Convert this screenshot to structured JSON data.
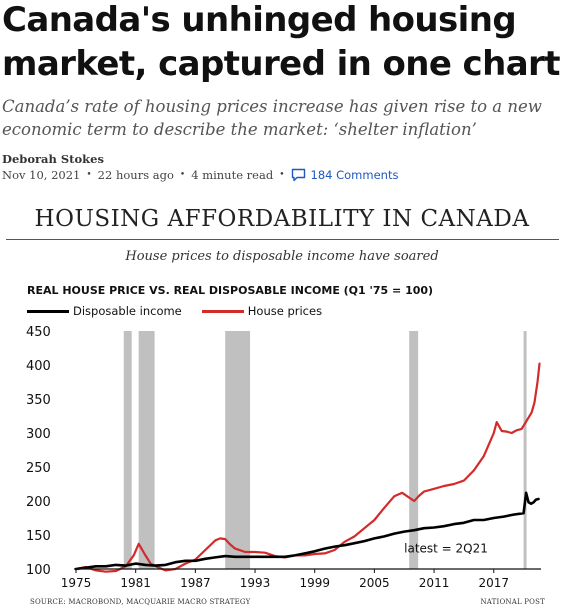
{
  "article": {
    "headline": "Canada's unhinged housing market, captured in one chart",
    "dek": "Canada’s rate of housing prices increase has given rise to a new economic term to describe the market: ‘shelter inflation’",
    "author": "Deborah Stokes",
    "date": "Nov 10, 2021",
    "ago": "22 hours ago",
    "read_time": "4 minute read",
    "comments": "184 Comments",
    "comment_icon": "speech-bubble-icon"
  },
  "graphic": {
    "title": "HOUSING AFFORDABILITY IN CANADA",
    "subtitle": "House prices to disposable income have soared",
    "source": "SOURCE: MACROBOND, MACQUARIE MACRO STRATEGY",
    "credit": "NATIONAL POST"
  },
  "chart_data": {
    "type": "line",
    "title": "REAL HOUSE PRICE VS. REAL DISPOSABLE INCOME (Q1 '75 = 100)",
    "xlabel": "",
    "ylabel": "",
    "xlim": [
      1975,
      2021.75
    ],
    "ylim": [
      100,
      450
    ],
    "x_ticks": [
      1975,
      1981,
      1987,
      1993,
      1999,
      2005,
      2011,
      2017
    ],
    "y_ticks": [
      100,
      150,
      200,
      250,
      300,
      350,
      400,
      450
    ],
    "grid": false,
    "legend_position": "top-left",
    "annotation": "latest = 2Q21",
    "recessions": [
      [
        1979.8,
        1980.6
      ],
      [
        1981.3,
        1982.9
      ],
      [
        1990.0,
        1992.5
      ],
      [
        2008.5,
        2009.4
      ],
      [
        2020.0,
        2020.3
      ]
    ],
    "recession_color": "#c0c0c0",
    "series": [
      {
        "name": "Disposable income",
        "color": "#000000",
        "points": [
          [
            1975,
            100
          ],
          [
            1976,
            102
          ],
          [
            1977,
            104
          ],
          [
            1978,
            104
          ],
          [
            1979,
            106
          ],
          [
            1980,
            105
          ],
          [
            1981,
            108
          ],
          [
            1982,
            106
          ],
          [
            1983,
            105
          ],
          [
            1984,
            106
          ],
          [
            1985,
            110
          ],
          [
            1986,
            112
          ],
          [
            1987,
            112
          ],
          [
            1988,
            115
          ],
          [
            1989,
            117
          ],
          [
            1990,
            119
          ],
          [
            1991,
            118
          ],
          [
            1992,
            118
          ],
          [
            1993,
            118
          ],
          [
            1994,
            118
          ],
          [
            1995,
            118
          ],
          [
            1996,
            118
          ],
          [
            1997,
            120
          ],
          [
            1998,
            123
          ],
          [
            1999,
            126
          ],
          [
            2000,
            130
          ],
          [
            2001,
            133
          ],
          [
            2002,
            135
          ],
          [
            2003,
            138
          ],
          [
            2004,
            141
          ],
          [
            2005,
            145
          ],
          [
            2006,
            148
          ],
          [
            2007,
            152
          ],
          [
            2008,
            155
          ],
          [
            2009,
            157
          ],
          [
            2010,
            160
          ],
          [
            2011,
            161
          ],
          [
            2012,
            163
          ],
          [
            2013,
            166
          ],
          [
            2014,
            168
          ],
          [
            2015,
            172
          ],
          [
            2016,
            172
          ],
          [
            2017,
            175
          ],
          [
            2018,
            177
          ],
          [
            2019,
            180
          ],
          [
            2020.0,
            182
          ],
          [
            2020.25,
            212
          ],
          [
            2020.5,
            198
          ],
          [
            2020.75,
            196
          ],
          [
            2021.0,
            198
          ],
          [
            2021.25,
            202
          ],
          [
            2021.5,
            203
          ]
        ]
      },
      {
        "name": "House prices",
        "color": "#d32a2a",
        "points": [
          [
            1975,
            100
          ],
          [
            1976,
            103
          ],
          [
            1977,
            98
          ],
          [
            1978,
            96
          ],
          [
            1979,
            97
          ],
          [
            1980,
            104
          ],
          [
            1980.8,
            120
          ],
          [
            1981.3,
            137
          ],
          [
            1981.9,
            122
          ],
          [
            1982.5,
            108
          ],
          [
            1983,
            104
          ],
          [
            1984,
            98
          ],
          [
            1985,
            100
          ],
          [
            1986,
            108
          ],
          [
            1987,
            114
          ],
          [
            1988,
            128
          ],
          [
            1989,
            142
          ],
          [
            1989.5,
            145
          ],
          [
            1990,
            144
          ],
          [
            1990.5,
            136
          ],
          [
            1991,
            130
          ],
          [
            1992,
            125
          ],
          [
            1993,
            125
          ],
          [
            1994,
            124
          ],
          [
            1995,
            119
          ],
          [
            1996,
            117
          ],
          [
            1997,
            120
          ],
          [
            1998,
            120
          ],
          [
            1999,
            122
          ],
          [
            2000,
            123
          ],
          [
            2001,
            128
          ],
          [
            2002,
            140
          ],
          [
            2003,
            148
          ],
          [
            2004,
            160
          ],
          [
            2005,
            172
          ],
          [
            2006,
            190
          ],
          [
            2007,
            207
          ],
          [
            2007.8,
            212
          ],
          [
            2008.5,
            205
          ],
          [
            2009,
            200
          ],
          [
            2009.5,
            208
          ],
          [
            2010,
            214
          ],
          [
            2011,
            218
          ],
          [
            2012,
            222
          ],
          [
            2013,
            225
          ],
          [
            2014,
            230
          ],
          [
            2015,
            245
          ],
          [
            2016,
            266
          ],
          [
            2017,
            300
          ],
          [
            2017.3,
            316
          ],
          [
            2017.8,
            303
          ],
          [
            2018.3,
            302
          ],
          [
            2018.8,
            300
          ],
          [
            2019.3,
            304
          ],
          [
            2019.8,
            306
          ],
          [
            2020.3,
            318
          ],
          [
            2020.8,
            330
          ],
          [
            2021.1,
            345
          ],
          [
            2021.4,
            375
          ],
          [
            2021.6,
            402
          ]
        ]
      }
    ]
  }
}
